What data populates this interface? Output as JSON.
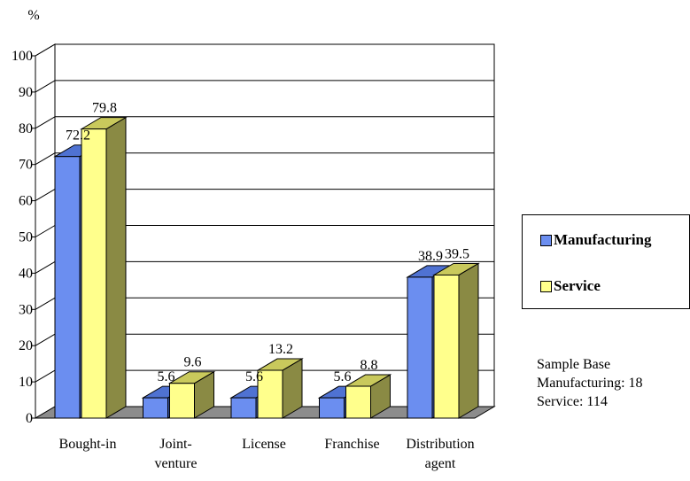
{
  "chart_data": {
    "type": "bar",
    "title": "",
    "xlabel": "",
    "ylabel": "%",
    "ylim": [
      0,
      100
    ],
    "yticks": [
      0,
      10,
      20,
      30,
      40,
      50,
      60,
      70,
      80,
      90,
      100
    ],
    "grid": true,
    "categories": [
      [
        "Bought-in"
      ],
      [
        "Joint-",
        "venture"
      ],
      [
        "License"
      ],
      [
        "Franchise"
      ],
      [
        "Distribution",
        "agent"
      ]
    ],
    "series": [
      {
        "name": "Manufacturing",
        "values": [
          72.2,
          5.6,
          5.6,
          5.6,
          38.9
        ],
        "labels": [
          "72.2",
          "5.6",
          "5.6",
          "5.6",
          "38.9"
        ]
      },
      {
        "name": "Service",
        "values": [
          79.8,
          9.6,
          13.2,
          8.8,
          39.5
        ],
        "labels": [
          "79.8",
          "9.6",
          "13.2",
          "8.8",
          "39.5"
        ]
      }
    ],
    "legend_position": "right",
    "colors": {
      "Manufacturing": {
        "front": "#6b8ef0",
        "side": "#3c58a8",
        "top": "#4f72d2"
      },
      "Service": {
        "front": "#ffff8c",
        "side": "#8a8a44",
        "top": "#c9c95c"
      },
      "floor": "#8c8c8c"
    }
  },
  "legend": {
    "items": [
      {
        "label": "Manufacturing",
        "color": "#6b8ef0"
      },
      {
        "label": "Service",
        "color": "#ffff8c"
      }
    ]
  },
  "sample_base": {
    "heading": "Sample Base",
    "manufacturing": "Manufacturing: 18",
    "service": "Service: 114"
  }
}
